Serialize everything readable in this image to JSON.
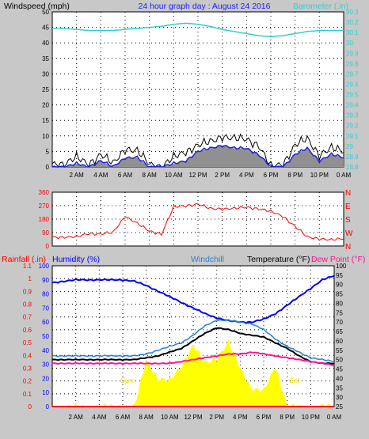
{
  "header": {
    "left_label": "Windspeed (mph)",
    "center_label": "24 hour graph day : August 24 2016",
    "right_label": "Barometer (.in)"
  },
  "colors": {
    "background": "#c8c8c8",
    "plot_bg": "#ffffff",
    "wind_gust": "#000000",
    "wind_avg": "#2020e0",
    "wind_fill": "#909090",
    "barometer": "#30d0d0",
    "direction": "#ff0000",
    "humidity": "#0000ff",
    "windchill": "#2a7fd4",
    "temperature": "#000000",
    "dewpoint": "#ff1493",
    "solar": "#ffff00",
    "rain": "#ff0000"
  },
  "x_axis": {
    "tick_labels": [
      "2 AM",
      "4 AM",
      "6 AM",
      "8 AM",
      "10 AM",
      "12 PM",
      "2 PM",
      "4 PM",
      "6 PM",
      "8 PM",
      "10 PM",
      "0 AM"
    ],
    "range_hours": [
      0,
      24
    ]
  },
  "panel3": {
    "rain_label": "Rainfall (.in)",
    "humidity_label": "Humidity (%)",
    "windchill_label": "Windchill",
    "temperature_label": "Temperature (°F)",
    "dewpoint_label": "Dew Point (°F)",
    "sunrise_label": "Sun",
    "sunset_label": "Set"
  },
  "chart_data": [
    {
      "type": "line",
      "title": "24 hour graph day : August 24 2016",
      "ylabel": "Windspeed (mph)",
      "ylim": [
        0,
        50
      ],
      "y_ticks": [
        "0",
        "5",
        "10",
        "15",
        "20",
        "25",
        "30",
        "35",
        "40",
        "45",
        "50"
      ],
      "y2label": "Barometer (.in)",
      "y2lim": [
        28.8,
        30.3
      ],
      "y2_ticks": [
        "28.8",
        "28.9",
        "29",
        "29.1",
        "29.2",
        "29.3",
        "29.4",
        "29.5",
        "29.6",
        "29.7",
        "29.8",
        "29.9",
        "30",
        "30.1",
        "30.2",
        "30.3"
      ],
      "grid": true,
      "x_hours": [
        0,
        1,
        2,
        3,
        4,
        5,
        6,
        7,
        8,
        9,
        10,
        11,
        12,
        13,
        14,
        15,
        16,
        17,
        18,
        19,
        20,
        21,
        22,
        23,
        24
      ],
      "series": [
        {
          "name": "Wind gust",
          "values": [
            1,
            1,
            3,
            1,
            4,
            1,
            6,
            5,
            1,
            0,
            3,
            5,
            7,
            8,
            10,
            9,
            9,
            7,
            0,
            1,
            7,
            9,
            4,
            6,
            5
          ]
        },
        {
          "name": "Wind average",
          "values": [
            0,
            0,
            1,
            0,
            2,
            0,
            3,
            3,
            0,
            0,
            1,
            2,
            5,
            6,
            7,
            6,
            6,
            4,
            0,
            0,
            4,
            6,
            2,
            4,
            3
          ]
        },
        {
          "name": "Barometer",
          "axis": "right",
          "values": [
            30.14,
            30.14,
            30.13,
            30.12,
            30.12,
            30.12,
            30.13,
            30.14,
            30.15,
            30.16,
            30.18,
            30.19,
            30.18,
            30.16,
            30.13,
            30.11,
            30.09,
            30.07,
            30.06,
            30.07,
            30.09,
            30.11,
            30.12,
            30.12,
            30.12
          ]
        }
      ]
    },
    {
      "type": "line",
      "ylabel": "Wind direction",
      "ylim": [
        0,
        360
      ],
      "y_ticks": [
        "0",
        "90",
        "180",
        "270",
        "360"
      ],
      "compass_labels": [
        "N",
        "W",
        "S",
        "E",
        "N"
      ],
      "grid": true,
      "x_hours": [
        0,
        1,
        2,
        3,
        4,
        5,
        6,
        7,
        8,
        9,
        10,
        11,
        12,
        13,
        14,
        15,
        16,
        17,
        18,
        19,
        20,
        21,
        22,
        23,
        24
      ],
      "series": [
        {
          "name": "Wind direction",
          "values": [
            60,
            60,
            60,
            85,
            80,
            90,
            200,
            150,
            100,
            80,
            260,
            270,
            280,
            250,
            250,
            250,
            260,
            250,
            230,
            200,
            130,
            60,
            50,
            40,
            50
          ]
        }
      ]
    },
    {
      "type": "line",
      "y_left_label": "Rainfall (.in)",
      "y_left_lim": [
        0,
        1.1
      ],
      "y_left_ticks": [
        "0",
        "0.1",
        "0.2",
        "0.3",
        "0.4",
        "0.5",
        "0.6",
        "0.7",
        "0.8",
        "0.9",
        "1",
        "1.1"
      ],
      "y_mid_label": "Humidity (%)",
      "y_mid_lim": [
        0,
        100
      ],
      "y_mid_ticks": [
        "0",
        "10",
        "20",
        "30",
        "40",
        "50",
        "60",
        "70",
        "80",
        "90",
        "100"
      ],
      "y_right_label": "Temperature (°F)",
      "y_right_lim": [
        25,
        100
      ],
      "y_right_ticks": [
        "25",
        "30",
        "35",
        "40",
        "45",
        "50",
        "55",
        "60",
        "65",
        "70",
        "75",
        "80",
        "85",
        "90",
        "95",
        "100"
      ],
      "grid": true,
      "x_hours": [
        0,
        1,
        2,
        3,
        4,
        5,
        6,
        7,
        8,
        9,
        10,
        11,
        12,
        13,
        14,
        15,
        16,
        17,
        18,
        19,
        20,
        21,
        22,
        23,
        24
      ],
      "series": [
        {
          "name": "Humidity",
          "values": [
            88,
            89,
            90,
            90,
            90,
            90,
            90,
            89,
            86,
            82,
            78,
            74,
            70,
            66,
            63,
            61,
            60,
            60,
            62,
            66,
            72,
            78,
            84,
            90,
            93
          ]
        },
        {
          "name": "Windchill",
          "values": [
            52,
            52,
            52,
            52,
            52,
            52,
            52,
            52,
            53,
            55,
            57,
            59,
            63,
            68,
            71,
            71,
            70,
            69,
            66,
            61,
            57,
            54,
            51,
            50,
            49
          ]
        },
        {
          "name": "Temperature",
          "values": [
            50,
            50,
            50,
            50,
            50,
            50,
            50,
            50,
            51,
            52,
            54,
            56,
            60,
            64,
            67,
            66,
            64,
            63,
            62,
            59,
            56,
            52,
            49,
            48,
            48
          ]
        },
        {
          "name": "Dew Point",
          "values": [
            48,
            48,
            48,
            48,
            48,
            48,
            48,
            48,
            48,
            48,
            48,
            49,
            50,
            51,
            52,
            53,
            53,
            54,
            53,
            52,
            51,
            50,
            49,
            48,
            47
          ]
        },
        {
          "name": "Solar",
          "values": [
            0,
            0,
            0,
            0,
            0,
            0,
            0,
            0,
            0.36,
            0.22,
            0.2,
            0.32,
            0.48,
            0.34,
            0.38,
            0.5,
            0.3,
            0.14,
            0.12,
            0.32,
            0,
            0,
            0,
            0,
            0
          ]
        },
        {
          "name": "Rainfall",
          "axis": "left",
          "values": [
            0,
            0,
            0,
            0,
            0,
            0,
            0,
            0,
            0,
            0,
            0,
            0,
            0,
            0,
            0,
            0,
            0,
            0,
            0,
            0,
            0,
            0,
            0,
            0,
            0
          ]
        }
      ]
    }
  ]
}
